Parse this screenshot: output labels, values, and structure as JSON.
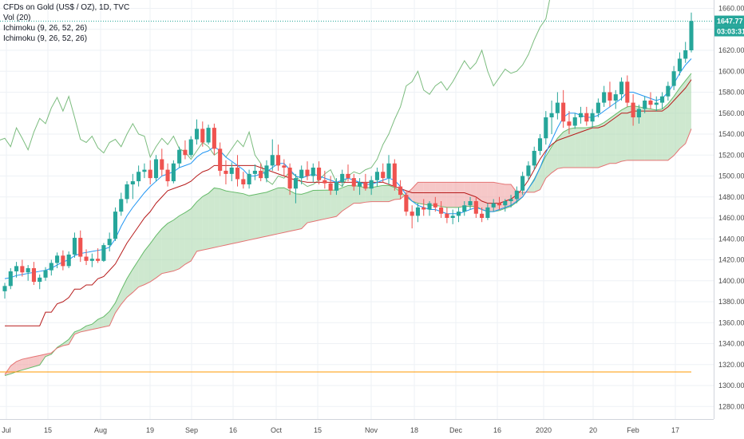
{
  "legend": {
    "symbol": "CFDs on Gold (US$ / OZ), 1D, TVC",
    "volume": "Vol (20)",
    "ichimoku_1": "Ichimoku (9, 26, 52, 26)",
    "ichimoku_2": "Ichimoku (9, 26, 52, 26)"
  },
  "badges": {
    "last_price": "1647.77",
    "countdown": "03:03:31"
  },
  "colors": {
    "up": "#26a69a",
    "down": "#ef5350",
    "tenkan": "#2196f3",
    "kijun": "#b71c1c",
    "chikou": "#43a047",
    "cloud_bull": "#a5d6a7",
    "cloud_bear": "#ef9a9a",
    "hline": "#ff9800",
    "badge": "#26a69a",
    "grid": "#eef1f5"
  },
  "chart_data": {
    "type": "candlestick",
    "x_tick_labels": [
      "Jul",
      "15",
      "Aug",
      "19",
      "Sep",
      "16",
      "Oct",
      "15",
      "Nov",
      "18",
      "Dec",
      "16",
      "2020",
      "20",
      "Feb",
      "17"
    ],
    "y_tick_labels": [
      "1280.00",
      "1300.00",
      "1320.00",
      "1340.00",
      "1360.00",
      "1380.00",
      "1400.00",
      "1420.00",
      "1440.00",
      "1460.00",
      "1480.00",
      "1500.00",
      "1520.00",
      "1540.00",
      "1560.00",
      "1580.00",
      "1600.00",
      "1620.00",
      "1640.00",
      "1660.00"
    ],
    "ylim": [
      1268,
      1668
    ],
    "last_price": 1647.77,
    "horizontal_line": 1313,
    "grid": true,
    "ohlc": [
      [
        1390,
        1398,
        1383,
        1395
      ],
      [
        1395,
        1412,
        1392,
        1409
      ],
      [
        1409,
        1418,
        1403,
        1414
      ],
      [
        1414,
        1420,
        1404,
        1408
      ],
      [
        1408,
        1415,
        1400,
        1412
      ],
      [
        1412,
        1418,
        1396,
        1399
      ],
      [
        1399,
        1406,
        1392,
        1403
      ],
      [
        1403,
        1413,
        1400,
        1410
      ],
      [
        1410,
        1420,
        1405,
        1417
      ],
      [
        1417,
        1427,
        1412,
        1424
      ],
      [
        1424,
        1429,
        1410,
        1414
      ],
      [
        1414,
        1428,
        1412,
        1425
      ],
      [
        1425,
        1446,
        1422,
        1441
      ],
      [
        1441,
        1448,
        1418,
        1423
      ],
      [
        1423,
        1430,
        1415,
        1419
      ],
      [
        1419,
        1426,
        1413,
        1421
      ],
      [
        1421,
        1431,
        1417,
        1419
      ],
      [
        1419,
        1436,
        1418,
        1434
      ],
      [
        1434,
        1446,
        1428,
        1440
      ],
      [
        1440,
        1470,
        1438,
        1466
      ],
      [
        1466,
        1484,
        1462,
        1478
      ],
      [
        1478,
        1495,
        1474,
        1492
      ],
      [
        1492,
        1502,
        1478,
        1495
      ],
      [
        1495,
        1510,
        1490,
        1504
      ],
      [
        1504,
        1512,
        1498,
        1506
      ],
      [
        1506,
        1515,
        1492,
        1498
      ],
      [
        1498,
        1520,
        1495,
        1516
      ],
      [
        1516,
        1526,
        1500,
        1506
      ],
      [
        1506,
        1512,
        1490,
        1495
      ],
      [
        1495,
        1515,
        1493,
        1512
      ],
      [
        1512,
        1528,
        1508,
        1525
      ],
      [
        1525,
        1534,
        1516,
        1520
      ],
      [
        1520,
        1538,
        1518,
        1535
      ],
      [
        1535,
        1554,
        1530,
        1545
      ],
      [
        1545,
        1552,
        1528,
        1532
      ],
      [
        1532,
        1549,
        1530,
        1546
      ],
      [
        1546,
        1550,
        1520,
        1526
      ],
      [
        1526,
        1532,
        1500,
        1505
      ],
      [
        1505,
        1515,
        1492,
        1502
      ],
      [
        1502,
        1513,
        1495,
        1508
      ],
      [
        1508,
        1520,
        1490,
        1497
      ],
      [
        1497,
        1504,
        1488,
        1492
      ],
      [
        1492,
        1506,
        1488,
        1502
      ],
      [
        1502,
        1511,
        1496,
        1505
      ],
      [
        1505,
        1512,
        1495,
        1498
      ],
      [
        1498,
        1515,
        1494,
        1510
      ],
      [
        1510,
        1535,
        1505,
        1520
      ],
      [
        1520,
        1530,
        1505,
        1510
      ],
      [
        1510,
        1516,
        1500,
        1508
      ],
      [
        1508,
        1512,
        1482,
        1488
      ],
      [
        1488,
        1502,
        1474,
        1498
      ],
      [
        1498,
        1510,
        1492,
        1506
      ],
      [
        1506,
        1514,
        1496,
        1500
      ],
      [
        1500,
        1512,
        1494,
        1508
      ],
      [
        1508,
        1514,
        1492,
        1496
      ],
      [
        1496,
        1505,
        1488,
        1493
      ],
      [
        1493,
        1500,
        1482,
        1486
      ],
      [
        1486,
        1498,
        1482,
        1494
      ],
      [
        1494,
        1506,
        1490,
        1502
      ],
      [
        1502,
        1511,
        1495,
        1498
      ],
      [
        1498,
        1502,
        1486,
        1490
      ],
      [
        1490,
        1498,
        1482,
        1494
      ],
      [
        1494,
        1502,
        1486,
        1488
      ],
      [
        1488,
        1500,
        1482,
        1496
      ],
      [
        1496,
        1508,
        1490,
        1504
      ],
      [
        1504,
        1512,
        1494,
        1498
      ],
      [
        1498,
        1520,
        1492,
        1512
      ],
      [
        1512,
        1516,
        1486,
        1490
      ],
      [
        1490,
        1496,
        1478,
        1482
      ],
      [
        1482,
        1486,
        1462,
        1466
      ],
      [
        1466,
        1472,
        1450,
        1462
      ],
      [
        1462,
        1474,
        1456,
        1470
      ],
      [
        1470,
        1478,
        1462,
        1468
      ],
      [
        1468,
        1476,
        1462,
        1474
      ],
      [
        1474,
        1480,
        1466,
        1470
      ],
      [
        1470,
        1476,
        1460,
        1464
      ],
      [
        1464,
        1470,
        1455,
        1460
      ],
      [
        1460,
        1468,
        1454,
        1462
      ],
      [
        1462,
        1470,
        1456,
        1466
      ],
      [
        1466,
        1476,
        1462,
        1472
      ],
      [
        1472,
        1480,
        1468,
        1476
      ],
      [
        1476,
        1480,
        1460,
        1464
      ],
      [
        1464,
        1470,
        1456,
        1460
      ],
      [
        1460,
        1474,
        1458,
        1470
      ],
      [
        1470,
        1478,
        1466,
        1474
      ],
      [
        1474,
        1480,
        1468,
        1472
      ],
      [
        1472,
        1478,
        1466,
        1476
      ],
      [
        1476,
        1482,
        1470,
        1478
      ],
      [
        1478,
        1490,
        1474,
        1486
      ],
      [
        1486,
        1504,
        1482,
        1500
      ],
      [
        1500,
        1514,
        1496,
        1510
      ],
      [
        1510,
        1528,
        1506,
        1524
      ],
      [
        1524,
        1540,
        1520,
        1536
      ],
      [
        1536,
        1562,
        1530,
        1556
      ],
      [
        1556,
        1572,
        1540,
        1560
      ],
      [
        1560,
        1580,
        1554,
        1570
      ],
      [
        1570,
        1582,
        1546,
        1552
      ],
      [
        1552,
        1562,
        1540,
        1548
      ],
      [
        1548,
        1560,
        1545,
        1556
      ],
      [
        1556,
        1566,
        1550,
        1560
      ],
      [
        1560,
        1566,
        1548,
        1552
      ],
      [
        1552,
        1564,
        1546,
        1560
      ],
      [
        1560,
        1574,
        1556,
        1570
      ],
      [
        1570,
        1586,
        1566,
        1580
      ],
      [
        1580,
        1590,
        1566,
        1572
      ],
      [
        1572,
        1582,
        1564,
        1578
      ],
      [
        1578,
        1594,
        1572,
        1590
      ],
      [
        1590,
        1596,
        1566,
        1570
      ],
      [
        1570,
        1578,
        1548,
        1556
      ],
      [
        1556,
        1568,
        1550,
        1564
      ],
      [
        1564,
        1576,
        1560,
        1572
      ],
      [
        1572,
        1580,
        1564,
        1568
      ],
      [
        1568,
        1576,
        1562,
        1570
      ],
      [
        1570,
        1580,
        1564,
        1576
      ],
      [
        1576,
        1590,
        1572,
        1586
      ],
      [
        1586,
        1605,
        1582,
        1600
      ],
      [
        1600,
        1618,
        1596,
        1612
      ],
      [
        1612,
        1628,
        1608,
        1620
      ],
      [
        1620,
        1656,
        1618,
        1648
      ]
    ],
    "series": [
      {
        "name": "Tenkan",
        "values": [
          1402,
          1403,
          1405,
          1406,
          1407,
          1408,
          1409,
          1410,
          1412,
          1415,
          1418,
          1420,
          1424,
          1426,
          1427,
          1428,
          1429,
          1430,
          1432,
          1440,
          1452,
          1462,
          1470,
          1477,
          1484,
          1490,
          1495,
          1500,
          1502,
          1504,
          1508,
          1510,
          1512,
          1518,
          1522,
          1524,
          1528,
          1524,
          1518,
          1514,
          1510,
          1506,
          1500,
          1500,
          1502,
          1504,
          1508,
          1512,
          1512,
          1506,
          1500,
          1498,
          1500,
          1502,
          1500,
          1498,
          1496,
          1494,
          1496,
          1498,
          1496,
          1494,
          1492,
          1492,
          1494,
          1496,
          1498,
          1496,
          1490,
          1482,
          1476,
          1472,
          1470,
          1468,
          1468,
          1466,
          1464,
          1464,
          1464,
          1466,
          1468,
          1470,
          1468,
          1466,
          1466,
          1468,
          1470,
          1472,
          1476,
          1480,
          1488,
          1496,
          1508,
          1522,
          1534,
          1546,
          1556,
          1560,
          1560,
          1558,
          1556,
          1556,
          1558,
          1562,
          1566,
          1570,
          1574,
          1580,
          1580,
          1578,
          1576,
          1574,
          1572,
          1574,
          1580,
          1588,
          1598,
          1606,
          1612
        ]
      },
      {
        "name": "Kijun",
        "values": [
          1357,
          1357,
          1357,
          1357,
          1357,
          1357,
          1357,
          1370,
          1370,
          1378,
          1380,
          1384,
          1392,
          1392,
          1396,
          1396,
          1402,
          1404,
          1410,
          1416,
          1426,
          1436,
          1444,
          1452,
          1460,
          1466,
          1474,
          1480,
          1486,
          1488,
          1490,
          1492,
          1495,
          1500,
          1504,
          1506,
          1510,
          1510,
          1510,
          1510,
          1510,
          1510,
          1510,
          1510,
          1508,
          1506,
          1504,
          1502,
          1500,
          1498,
          1496,
          1495,
          1494,
          1494,
          1494,
          1494,
          1494,
          1494,
          1494,
          1494,
          1494,
          1494,
          1494,
          1494,
          1494,
          1494,
          1492,
          1490,
          1488,
          1486,
          1484,
          1484,
          1484,
          1484,
          1484,
          1484,
          1484,
          1484,
          1484,
          1484,
          1482,
          1480,
          1476,
          1474,
          1474,
          1474,
          1476,
          1478,
          1482,
          1488,
          1496,
          1506,
          1516,
          1524,
          1530,
          1534,
          1536,
          1538,
          1540,
          1542,
          1544,
          1546,
          1546,
          1548,
          1552,
          1556,
          1560,
          1560,
          1562,
          1562,
          1562,
          1562,
          1562,
          1562,
          1566,
          1572,
          1578,
          1584,
          1592
        ]
      }
    ],
    "x_range_days": [
      0,
      141
    ]
  }
}
